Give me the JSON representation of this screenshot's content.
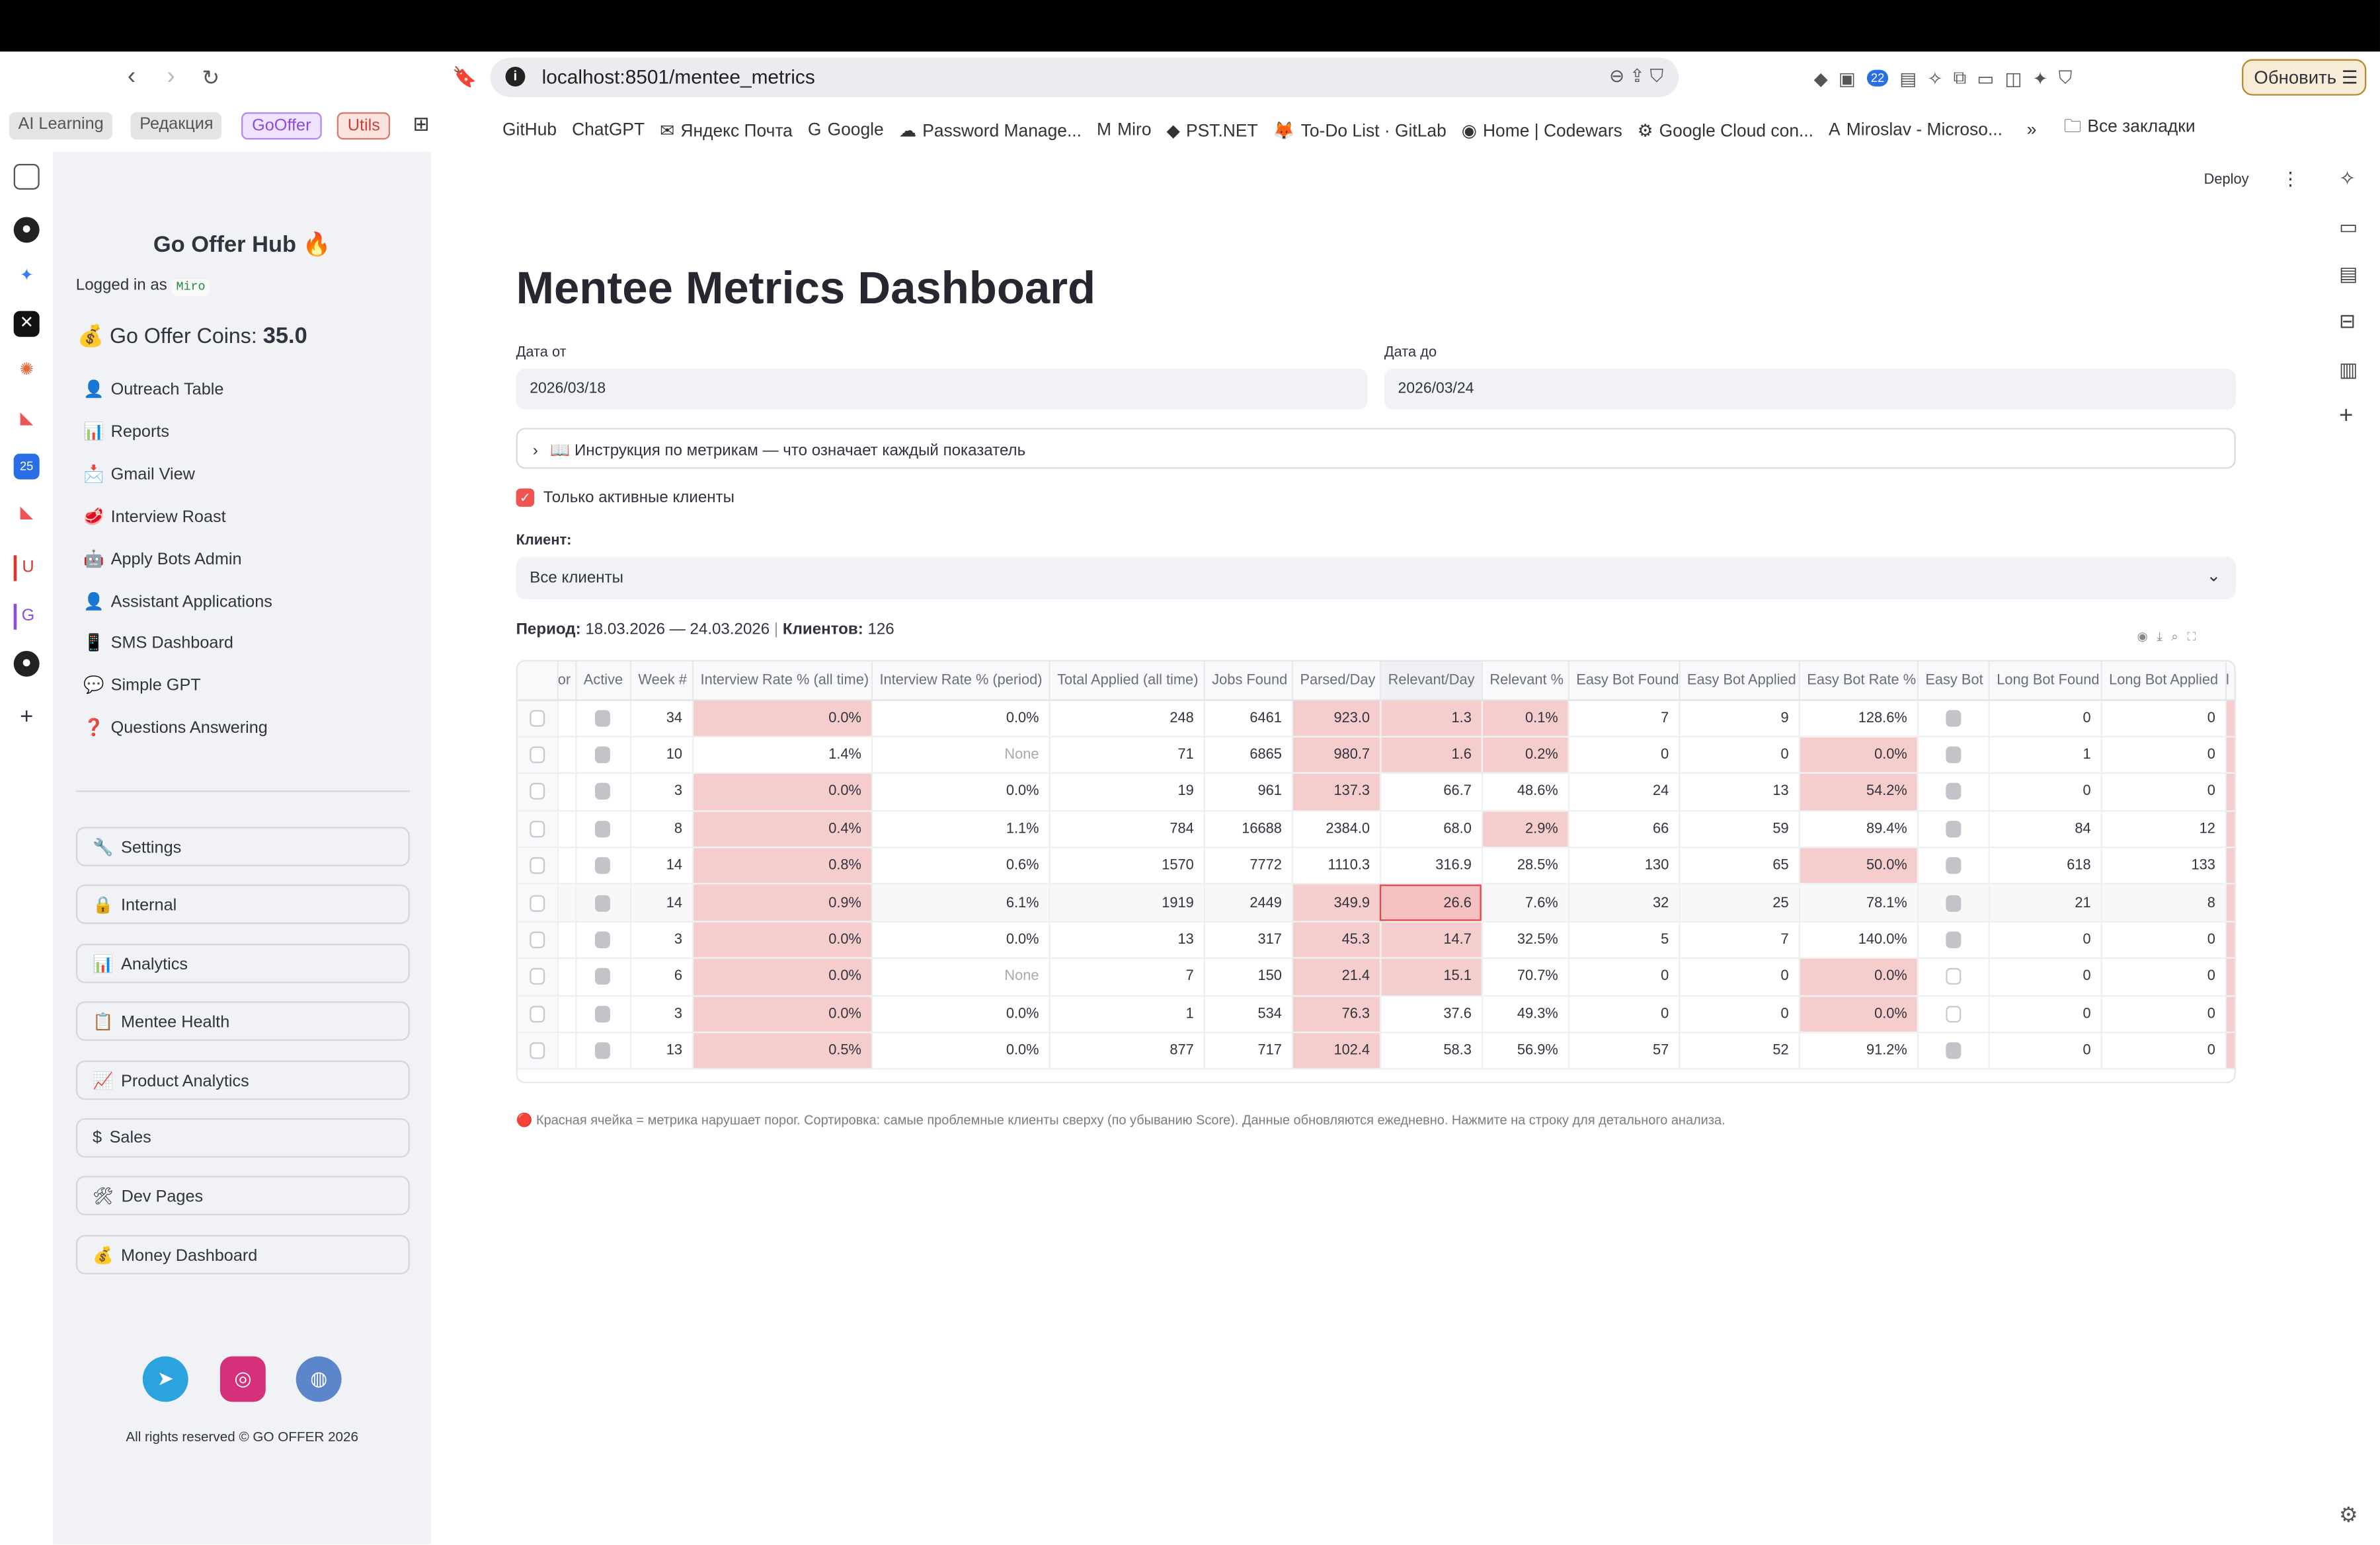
{
  "browser": {
    "url": "localhost:8501/mentee_metrics",
    "update_label": "Обновить",
    "tab_groups": [
      {
        "label": "AI Learning",
        "color": "#e3e4e6",
        "text": "#555"
      },
      {
        "label": "Редакция",
        "color": "#e3e4e6",
        "text": "#555"
      },
      {
        "label": "GoOffer",
        "color": "#efe3fd",
        "text": "#8d4be0"
      },
      {
        "label": "Utils",
        "color": "#fbe4e0",
        "text": "#c8423a"
      }
    ],
    "bookmarks": [
      {
        "label": "GitHub",
        "icon": ""
      },
      {
        "label": "ChatGPT",
        "icon": ""
      },
      {
        "label": "Яндекс Почта",
        "icon": "✉"
      },
      {
        "label": "Google",
        "icon": "G"
      },
      {
        "label": "Password Manage...",
        "icon": "☁"
      },
      {
        "label": "Miro",
        "icon": "M"
      },
      {
        "label": "PST.NET",
        "icon": "◆"
      },
      {
        "label": "To-Do List · GitLab",
        "icon": "🦊"
      },
      {
        "label": "Home | Codewars",
        "icon": "◉"
      },
      {
        "label": "Google Cloud con...",
        "icon": "⚙"
      },
      {
        "label": "Miroslav - Microso...",
        "icon": "A"
      }
    ],
    "more_bookmarks": "»",
    "all_bookmarks": "Все закладки",
    "extension_badge": "22"
  },
  "sidebar": {
    "title": "Go Offer Hub 🔥",
    "logged_in_prefix": "Logged in as",
    "username": "Miro",
    "coins_label": "💰 Go Offer Coins:",
    "coins_value": "35.0",
    "nav": [
      {
        "icon": "👤",
        "label": "Outreach Table"
      },
      {
        "icon": "📊",
        "label": "Reports"
      },
      {
        "icon": "📩",
        "label": "Gmail View"
      },
      {
        "icon": "🥩",
        "label": "Interview Roast"
      },
      {
        "icon": "🤖",
        "label": "Apply Bots Admin"
      },
      {
        "icon": "👤",
        "label": "Assistant Applications"
      },
      {
        "icon": "📱",
        "label": "SMS Dashboard"
      },
      {
        "icon": "💬",
        "label": "Simple GPT"
      },
      {
        "icon": "❓",
        "label": "Questions Answering"
      }
    ],
    "buttons": [
      {
        "icon": "🔧",
        "label": "Settings"
      },
      {
        "icon": "🔒",
        "label": "Internal"
      },
      {
        "icon": "📊",
        "label": "Analytics"
      },
      {
        "icon": "📋",
        "label": "Mentee Health"
      },
      {
        "icon": "📈",
        "label": "Product Analytics"
      },
      {
        "icon": "$",
        "label": "Sales"
      },
      {
        "icon": "🛠",
        "label": "Dev Pages"
      },
      {
        "icon": "💰",
        "label": "Money Dashboard"
      }
    ],
    "footer": "All rights reserved © GO OFFER 2026"
  },
  "header": {
    "deploy": "Deploy"
  },
  "main": {
    "title": "Mentee Metrics Dashboard",
    "date_from_label": "Дата от",
    "date_from": "2026/03/18",
    "date_to_label": "Дата до",
    "date_to": "2026/03/24",
    "expander": "📖 Инструкция по метрикам — что означает каждый показатель",
    "active_only_label": "Только активные клиенты",
    "active_only": true,
    "client_label": "Клиент:",
    "client_value": "Все клиенты",
    "period_label": "Период:",
    "period_value": "18.03.2026 — 24.03.2026",
    "clients_label": "Клиентов:",
    "clients_value": "126",
    "footnote": "🔴 Красная ячейка = метрика нарушает порог. Сортировка: самые проблемные клиенты сверху (по убыванию Score). Данные обновляются ежедневно. Нажмите на строку для детального анализа."
  },
  "table": {
    "columns": [
      {
        "key": "sel",
        "label": ""
      },
      {
        "key": "prev",
        "label": "or"
      },
      {
        "key": "active",
        "label": "Active"
      },
      {
        "key": "week",
        "label": "Week #"
      },
      {
        "key": "ir_all",
        "label": "Interview Rate % (all time)"
      },
      {
        "key": "ir_period",
        "label": "Interview Rate % (period)"
      },
      {
        "key": "total_applied",
        "label": "Total Applied (all time)"
      },
      {
        "key": "jobs_found",
        "label": "Jobs Found"
      },
      {
        "key": "parsed_day",
        "label": "Parsed/Day"
      },
      {
        "key": "relevant_day",
        "label": "Relevant/Day"
      },
      {
        "key": "relevant_pct",
        "label": "Relevant %"
      },
      {
        "key": "eb_found",
        "label": "Easy Bot Found"
      },
      {
        "key": "eb_applied",
        "label": "Easy Bot Applied"
      },
      {
        "key": "eb_rate",
        "label": "Easy Bot Rate %"
      },
      {
        "key": "easy_bot",
        "label": "Easy Bot"
      },
      {
        "key": "lb_found",
        "label": "Long Bot Found"
      },
      {
        "key": "lb_applied",
        "label": "Long Bot Applied"
      },
      {
        "key": "next",
        "label": "l"
      }
    ],
    "rows": [
      {
        "active": true,
        "week": "34",
        "ir_all": "0.0%",
        "ir_period": "0.0%",
        "total_applied": "248",
        "jobs_found": "6461",
        "parsed_day": "923.0",
        "relevant_day": "1.3",
        "relevant_pct": "0.1%",
        "eb_found": "7",
        "eb_applied": "9",
        "eb_rate": "128.6%",
        "easy_bot": true,
        "lb_found": "0",
        "lb_applied": "0",
        "flagged": [
          "ir_all",
          "parsed_day",
          "relevant_day",
          "relevant_pct",
          "next"
        ]
      },
      {
        "active": true,
        "week": "10",
        "ir_all": "1.4%",
        "ir_period": "None",
        "total_applied": "71",
        "jobs_found": "6865",
        "parsed_day": "980.7",
        "relevant_day": "1.6",
        "relevant_pct": "0.2%",
        "eb_found": "0",
        "eb_applied": "0",
        "eb_rate": "0.0%",
        "easy_bot": true,
        "lb_found": "1",
        "lb_applied": "0",
        "flagged": [
          "parsed_day",
          "relevant_day",
          "relevant_pct",
          "eb_rate",
          "next"
        ]
      },
      {
        "active": true,
        "week": "3",
        "ir_all": "0.0%",
        "ir_period": "0.0%",
        "total_applied": "19",
        "jobs_found": "961",
        "parsed_day": "137.3",
        "relevant_day": "66.7",
        "relevant_pct": "48.6%",
        "eb_found": "24",
        "eb_applied": "13",
        "eb_rate": "54.2%",
        "easy_bot": true,
        "lb_found": "0",
        "lb_applied": "0",
        "flagged": [
          "ir_all",
          "parsed_day",
          "eb_rate",
          "next"
        ]
      },
      {
        "active": true,
        "week": "8",
        "ir_all": "0.4%",
        "ir_period": "1.1%",
        "total_applied": "784",
        "jobs_found": "16688",
        "parsed_day": "2384.0",
        "relevant_day": "68.0",
        "relevant_pct": "2.9%",
        "eb_found": "66",
        "eb_applied": "59",
        "eb_rate": "89.4%",
        "easy_bot": true,
        "lb_found": "84",
        "lb_applied": "12",
        "flagged": [
          "ir_all",
          "relevant_pct",
          "next"
        ]
      },
      {
        "active": true,
        "week": "14",
        "ir_all": "0.8%",
        "ir_period": "0.6%",
        "total_applied": "1570",
        "jobs_found": "7772",
        "parsed_day": "1110.3",
        "relevant_day": "316.9",
        "relevant_pct": "28.5%",
        "eb_found": "130",
        "eb_applied": "65",
        "eb_rate": "50.0%",
        "easy_bot": true,
        "lb_found": "618",
        "lb_applied": "133",
        "flagged": [
          "ir_all",
          "eb_rate",
          "next"
        ]
      },
      {
        "active": true,
        "week": "14",
        "ir_all": "0.9%",
        "ir_period": "6.1%",
        "total_applied": "1919",
        "jobs_found": "2449",
        "parsed_day": "349.9",
        "relevant_day": "26.6",
        "relevant_pct": "7.6%",
        "eb_found": "32",
        "eb_applied": "25",
        "eb_rate": "78.1%",
        "easy_bot": true,
        "lb_found": "21",
        "lb_applied": "8",
        "flagged": [
          "ir_all",
          "parsed_day",
          "relevant_day",
          "next"
        ],
        "selected": "relevant_day",
        "hover": true
      },
      {
        "active": true,
        "week": "3",
        "ir_all": "0.0%",
        "ir_period": "0.0%",
        "total_applied": "13",
        "jobs_found": "317",
        "parsed_day": "45.3",
        "relevant_day": "14.7",
        "relevant_pct": "32.5%",
        "eb_found": "5",
        "eb_applied": "7",
        "eb_rate": "140.0%",
        "easy_bot": true,
        "lb_found": "0",
        "lb_applied": "0",
        "flagged": [
          "ir_all",
          "parsed_day",
          "relevant_day",
          "next"
        ]
      },
      {
        "active": true,
        "week": "6",
        "ir_all": "0.0%",
        "ir_period": "None",
        "total_applied": "7",
        "jobs_found": "150",
        "parsed_day": "21.4",
        "relevant_day": "15.1",
        "relevant_pct": "70.7%",
        "eb_found": "0",
        "eb_applied": "0",
        "eb_rate": "0.0%",
        "easy_bot": false,
        "lb_found": "0",
        "lb_applied": "0",
        "flagged": [
          "ir_all",
          "parsed_day",
          "relevant_day",
          "eb_rate",
          "next"
        ]
      },
      {
        "active": true,
        "week": "3",
        "ir_all": "0.0%",
        "ir_period": "0.0%",
        "total_applied": "1",
        "jobs_found": "534",
        "parsed_day": "76.3",
        "relevant_day": "37.6",
        "relevant_pct": "49.3%",
        "eb_found": "0",
        "eb_applied": "0",
        "eb_rate": "0.0%",
        "easy_bot": false,
        "lb_found": "0",
        "lb_applied": "0",
        "flagged": [
          "ir_all",
          "parsed_day",
          "eb_rate",
          "next"
        ]
      },
      {
        "active": true,
        "week": "13",
        "ir_all": "0.5%",
        "ir_period": "0.0%",
        "total_applied": "877",
        "jobs_found": "717",
        "parsed_day": "102.4",
        "relevant_day": "58.3",
        "relevant_pct": "56.9%",
        "eb_found": "57",
        "eb_applied": "52",
        "eb_rate": "91.2%",
        "easy_bot": true,
        "lb_found": "0",
        "lb_applied": "0",
        "flagged": [
          "ir_all",
          "parsed_day",
          "next"
        ]
      }
    ]
  },
  "colors": {
    "flag": "#f6cdcd",
    "accent": "#f0544f",
    "sidebar_bg": "#f0f2f6"
  }
}
